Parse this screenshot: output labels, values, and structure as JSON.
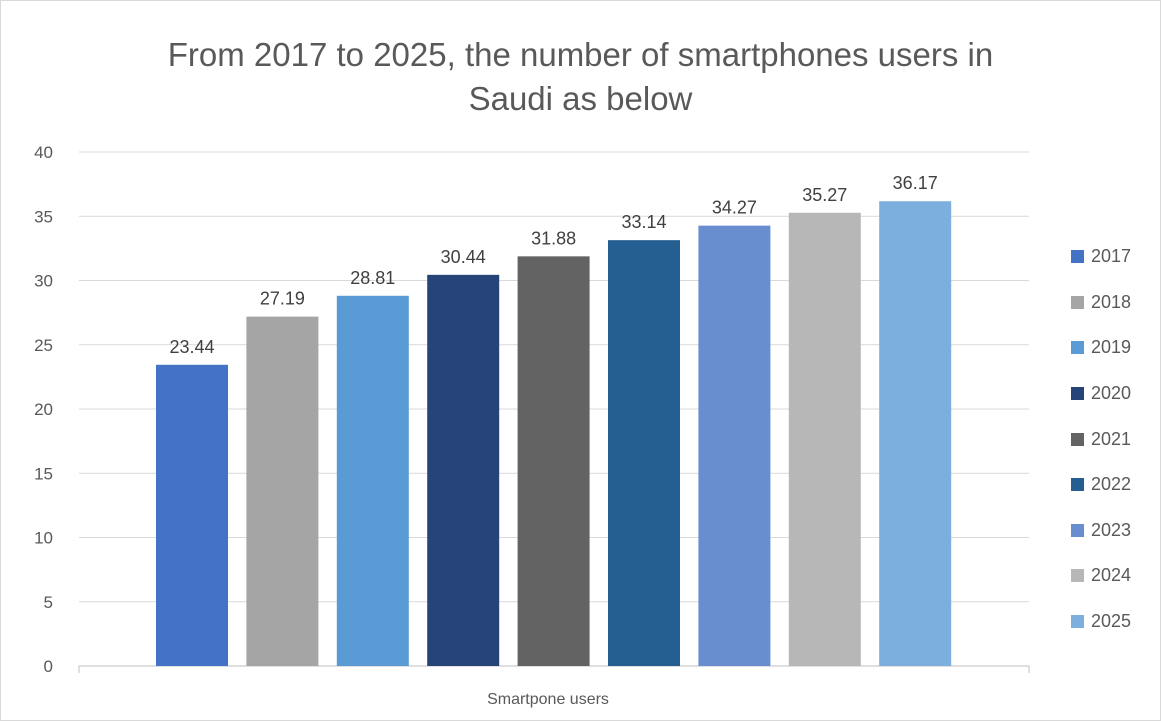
{
  "chart_data": {
    "type": "bar",
    "title": "From 2017 to 2025, the number of smartphones users in Saudi as below",
    "title_lines": [
      "From 2017 to 2025, the number of smartphones users in",
      "Saudi as below"
    ],
    "category": "Smartpone users",
    "ylim": [
      0,
      40
    ],
    "yticks": [
      0,
      5,
      10,
      15,
      20,
      25,
      30,
      35,
      40
    ],
    "grid": true,
    "legend_position": "right",
    "series": [
      {
        "name": "2017",
        "value": 23.44,
        "color": "#4472c4"
      },
      {
        "name": "2018",
        "value": 27.19,
        "color": "#a5a5a5"
      },
      {
        "name": "2019",
        "value": 28.81,
        "color": "#5b9bd5"
      },
      {
        "name": "2020",
        "value": 30.44,
        "color": "#264478"
      },
      {
        "name": "2021",
        "value": 31.88,
        "color": "#636363"
      },
      {
        "name": "2022",
        "value": 33.14,
        "color": "#255e91"
      },
      {
        "name": "2023",
        "value": 34.27,
        "color": "#698ed0"
      },
      {
        "name": "2024",
        "value": 35.27,
        "color": "#b7b7b7"
      },
      {
        "name": "2025",
        "value": 36.17,
        "color": "#7cafdd"
      }
    ]
  }
}
